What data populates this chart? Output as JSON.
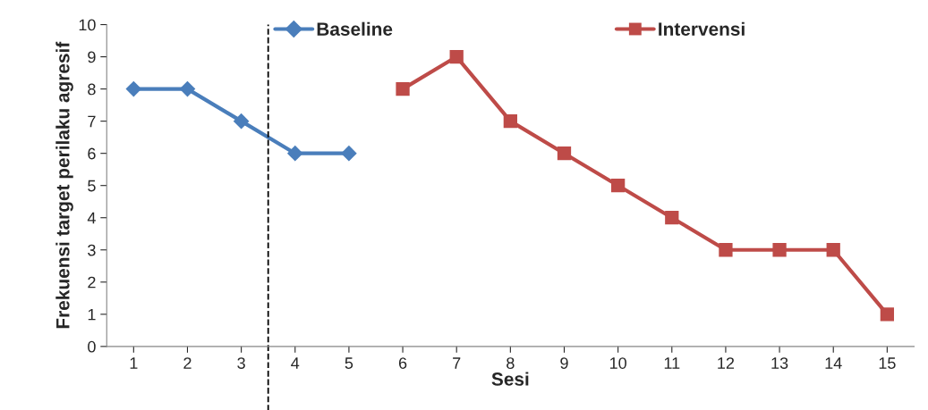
{
  "chart_data": {
    "type": "line",
    "xlabel": "Sesi",
    "ylabel": "Frekuensi target perilaku agresif",
    "series": [
      {
        "name": "Baseline",
        "color": "#4a7ebb",
        "marker": "diamond",
        "x": [
          1,
          2,
          3,
          4,
          5
        ],
        "values": [
          8,
          8,
          7,
          6,
          6
        ]
      },
      {
        "name": "Intervensi",
        "color": "#be4b48",
        "marker": "square",
        "x": [
          6,
          7,
          8,
          9,
          10,
          11,
          12,
          13,
          14,
          15
        ],
        "values": [
          8,
          9,
          7,
          6,
          5,
          4,
          3,
          3,
          3,
          1
        ]
      }
    ],
    "xlim": [
      0.5,
      15.5
    ],
    "xticks": [
      1,
      2,
      3,
      4,
      5,
      6,
      7,
      8,
      9,
      10,
      11,
      12,
      13,
      14,
      15
    ],
    "ylim": [
      0,
      10
    ],
    "yticks": [
      0,
      1,
      2,
      3,
      4,
      5,
      6,
      7,
      8,
      9,
      10
    ],
    "ref_lines": [
      {
        "axis": "x",
        "value": 3.5,
        "label": null,
        "color": "#000000",
        "line_style": "dashed"
      }
    ],
    "grid": false,
    "legend": "top",
    "line_style": "solid"
  }
}
